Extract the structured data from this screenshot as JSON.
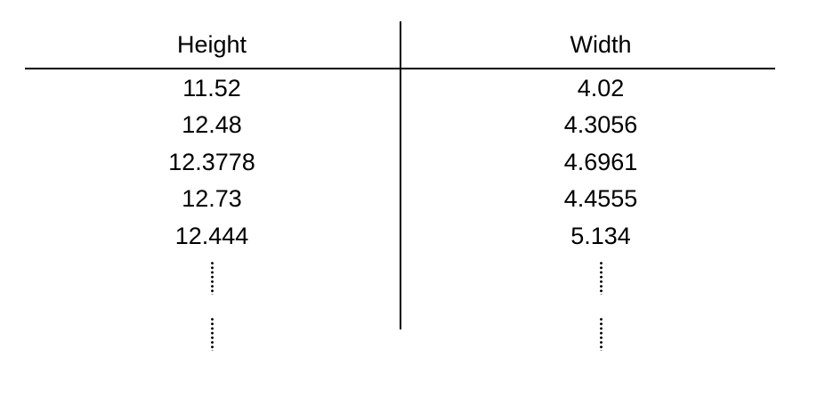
{
  "table": {
    "columns": [
      "Height",
      "Width"
    ],
    "rows": [
      [
        "11.52",
        "4.02"
      ],
      [
        "12.48",
        "4.3056"
      ],
      [
        "12.3778",
        "4.6961"
      ],
      [
        "12.73",
        "4.4555"
      ],
      [
        "12.444",
        "5.134"
      ]
    ],
    "continuation": "vertical ellipsis (more rows omitted)"
  }
}
